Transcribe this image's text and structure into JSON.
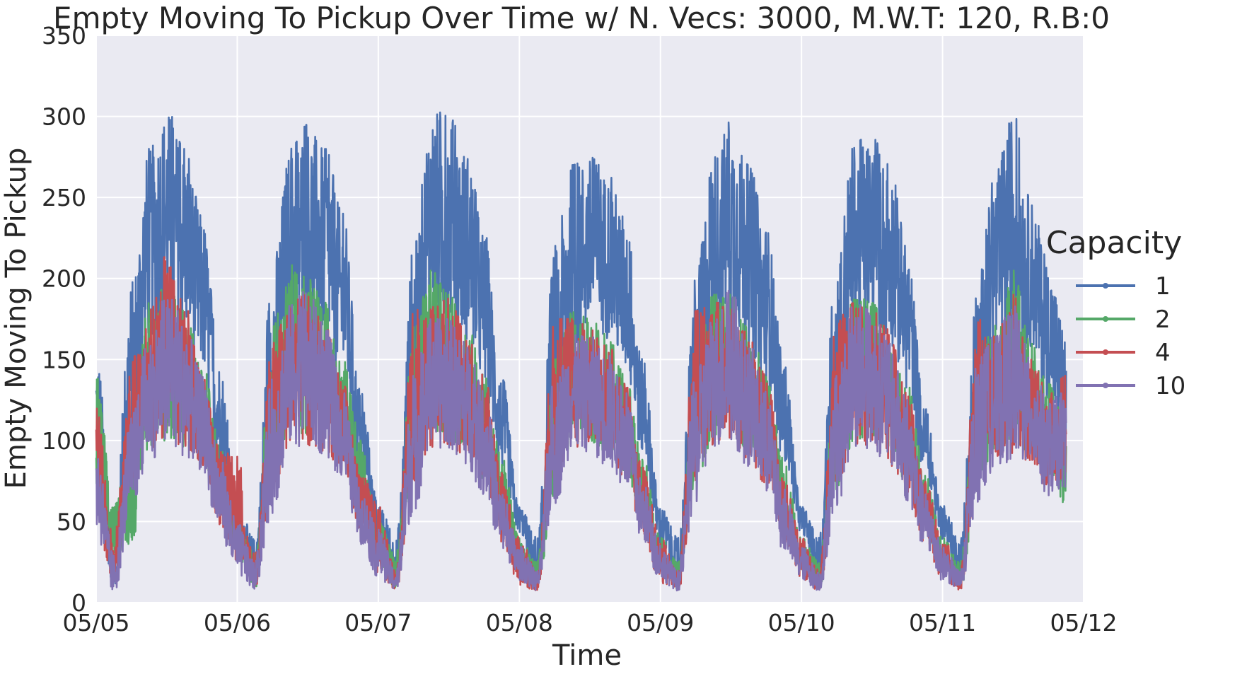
{
  "chart_data": {
    "type": "line",
    "title": "Empty Moving To Pickup Over Time w/ N. Vecs: 3000, M.W.T: 120, R.B:0",
    "xlabel": "Time",
    "ylabel": "Empty Moving To Pickup",
    "x_unit": "date (May), tick every day",
    "xlim": [
      "05/05",
      "05/12"
    ],
    "x_ticks": [
      "05/05",
      "05/06",
      "05/07",
      "05/08",
      "05/09",
      "05/10",
      "05/11",
      "05/12"
    ],
    "ylim": [
      0,
      350
    ],
    "y_ticks": [
      "0",
      "50",
      "100",
      "150",
      "200",
      "250",
      "300",
      "350"
    ],
    "grid": true,
    "legend": {
      "title": "Capacity",
      "placement": "right, outside plot"
    },
    "series": [
      {
        "name": "1",
        "color": "#4C72B0",
        "x": [
          "05/05 00:00",
          "05/05 03:00",
          "05/05 06:00",
          "05/05 09:00",
          "05/05 12:00",
          "05/05 15:00",
          "05/05 18:00",
          "05/05 21:00",
          "05/06 00:00",
          "05/06 03:00",
          "05/06 06:00",
          "05/06 09:00",
          "05/06 12:00",
          "05/06 15:00",
          "05/06 18:00",
          "05/06 21:00",
          "05/07 00:00",
          "05/07 03:00",
          "05/07 06:00",
          "05/07 09:00",
          "05/07 12:00",
          "05/07 15:00",
          "05/07 18:00",
          "05/07 21:00",
          "05/08 00:00",
          "05/08 03:00",
          "05/08 06:00",
          "05/08 09:00",
          "05/08 12:00",
          "05/08 15:00",
          "05/08 18:00",
          "05/08 21:00",
          "05/09 00:00",
          "05/09 03:00",
          "05/09 06:00",
          "05/09 09:00",
          "05/09 12:00",
          "05/09 15:00",
          "05/09 18:00",
          "05/09 21:00",
          "05/10 00:00",
          "05/10 03:00",
          "05/10 06:00",
          "05/10 09:00",
          "05/10 12:00",
          "05/10 15:00",
          "05/10 18:00",
          "05/10 21:00",
          "05/11 00:00",
          "05/11 03:00",
          "05/11 06:00",
          "05/11 09:00",
          "05/11 12:00",
          "05/11 15:00",
          "05/11 18:00",
          "05/11 21:00"
        ],
        "lower": [
          60,
          5,
          60,
          140,
          150,
          145,
          125,
          70,
          30,
          5,
          70,
          140,
          150,
          140,
          120,
          70,
          30,
          5,
          60,
          145,
          150,
          140,
          115,
          70,
          40,
          10,
          60,
          130,
          145,
          145,
          125,
          80,
          30,
          5,
          60,
          140,
          150,
          135,
          120,
          75,
          40,
          10,
          60,
          140,
          150,
          140,
          115,
          70,
          35,
          10,
          60,
          130,
          140,
          140,
          110,
          65
        ],
        "upper": [
          160,
          40,
          200,
          280,
          305,
          280,
          240,
          150,
          60,
          40,
          210,
          280,
          295,
          280,
          240,
          130,
          60,
          40,
          220,
          305,
          300,
          280,
          230,
          140,
          60,
          40,
          220,
          270,
          275,
          265,
          240,
          150,
          60,
          40,
          200,
          280,
          297,
          270,
          235,
          150,
          60,
          40,
          220,
          285,
          287,
          270,
          220,
          120,
          60,
          40,
          200,
          265,
          303,
          250,
          210,
          170
        ]
      },
      {
        "name": "2",
        "color": "#55A868",
        "x": [
          "05/05 00:00",
          "05/05 03:00",
          "05/05 06:00",
          "05/05 09:00",
          "05/05 12:00",
          "05/05 15:00",
          "05/05 18:00",
          "05/05 21:00",
          "05/06 00:00",
          "05/06 03:00",
          "05/06 06:00",
          "05/06 09:00",
          "05/06 12:00",
          "05/06 15:00",
          "05/06 18:00",
          "05/06 21:00",
          "05/07 00:00",
          "05/07 03:00",
          "05/07 06:00",
          "05/07 09:00",
          "05/07 12:00",
          "05/07 15:00",
          "05/07 18:00",
          "05/07 21:00",
          "05/08 00:00",
          "05/08 03:00",
          "05/08 06:00",
          "05/08 09:00",
          "05/08 12:00",
          "05/08 15:00",
          "05/08 18:00",
          "05/08 21:00",
          "05/09 00:00",
          "05/09 03:00",
          "05/09 06:00",
          "05/09 09:00",
          "05/09 12:00",
          "05/09 15:00",
          "05/09 18:00",
          "05/09 21:00",
          "05/10 00:00",
          "05/10 03:00",
          "05/10 06:00",
          "05/10 09:00",
          "05/10 12:00",
          "05/10 15:00",
          "05/10 18:00",
          "05/10 21:00",
          "05/11 00:00",
          "05/11 03:00",
          "05/11 06:00",
          "05/11 09:00",
          "05/11 12:00",
          "05/11 15:00",
          "05/11 18:00",
          "05/11 21:00"
        ],
        "lower": [
          40,
          20,
          25,
          80,
          80,
          80,
          75,
          50,
          25,
          5,
          60,
          85,
          85,
          85,
          75,
          45,
          20,
          5,
          60,
          85,
          85,
          80,
          65,
          40,
          15,
          5,
          50,
          85,
          85,
          80,
          70,
          45,
          15,
          5,
          60,
          85,
          85,
          80,
          70,
          40,
          15,
          5,
          55,
          85,
          85,
          80,
          60,
          40,
          15,
          5,
          55,
          80,
          80,
          80,
          70,
          50
        ],
        "upper": [
          140,
          60,
          100,
          185,
          195,
          180,
          150,
          100,
          50,
          30,
          170,
          210,
          200,
          185,
          150,
          100,
          50,
          30,
          170,
          205,
          190,
          175,
          140,
          90,
          40,
          25,
          150,
          180,
          175,
          165,
          140,
          90,
          40,
          25,
          150,
          190,
          190,
          175,
          140,
          90,
          40,
          25,
          150,
          190,
          185,
          165,
          135,
          80,
          40,
          25,
          150,
          175,
          205,
          160,
          135,
          120
        ]
      },
      {
        "name": "4",
        "color": "#C44E52",
        "x": [
          "05/05 00:00",
          "05/05 03:00",
          "05/05 06:00",
          "05/05 09:00",
          "05/05 12:00",
          "05/05 15:00",
          "05/05 18:00",
          "05/05 21:00",
          "05/06 00:00",
          "05/06 03:00",
          "05/06 06:00",
          "05/06 09:00",
          "05/06 12:00",
          "05/06 15:00",
          "05/06 18:00",
          "05/06 21:00",
          "05/07 00:00",
          "05/07 03:00",
          "05/07 06:00",
          "05/07 09:00",
          "05/07 12:00",
          "05/07 15:00",
          "05/07 18:00",
          "05/07 21:00",
          "05/08 00:00",
          "05/08 03:00",
          "05/08 06:00",
          "05/08 09:00",
          "05/08 12:00",
          "05/08 15:00",
          "05/08 18:00",
          "05/08 21:00",
          "05/09 00:00",
          "05/09 03:00",
          "05/09 06:00",
          "05/09 09:00",
          "05/09 12:00",
          "05/09 15:00",
          "05/09 18:00",
          "05/09 21:00",
          "05/10 00:00",
          "05/10 03:00",
          "05/10 06:00",
          "05/10 09:00",
          "05/10 12:00",
          "05/10 15:00",
          "05/10 18:00",
          "05/10 21:00",
          "05/11 00:00",
          "05/11 03:00",
          "05/11 06:00",
          "05/11 09:00",
          "05/11 12:00",
          "05/11 15:00",
          "05/11 18:00",
          "05/11 21:00"
        ],
        "lower": [
          35,
          5,
          60,
          80,
          80,
          80,
          75,
          40,
          10,
          5,
          55,
          80,
          80,
          80,
          70,
          35,
          10,
          5,
          55,
          80,
          80,
          75,
          60,
          30,
          5,
          5,
          60,
          80,
          80,
          75,
          65,
          35,
          5,
          5,
          55,
          80,
          80,
          75,
          60,
          30,
          10,
          5,
          55,
          80,
          80,
          70,
          55,
          30,
          10,
          5,
          60,
          75,
          75,
          75,
          60,
          65
        ],
        "upper": [
          120,
          40,
          150,
          180,
          215,
          185,
          140,
          95,
          90,
          30,
          160,
          185,
          190,
          170,
          135,
          80,
          60,
          20,
          180,
          185,
          190,
          165,
          140,
          80,
          40,
          20,
          175,
          175,
          170,
          160,
          135,
          85,
          40,
          20,
          180,
          185,
          185,
          165,
          140,
          75,
          40,
          20,
          175,
          185,
          180,
          170,
          130,
          75,
          40,
          20,
          175,
          165,
          190,
          150,
          130,
          140
        ]
      },
      {
        "name": "10",
        "color": "#8172B2",
        "x": [
          "05/05 00:00",
          "05/05 03:00",
          "05/05 06:00",
          "05/05 09:00",
          "05/05 12:00",
          "05/05 15:00",
          "05/05 18:00",
          "05/05 21:00",
          "05/06 00:00",
          "05/06 03:00",
          "05/06 06:00",
          "05/06 09:00",
          "05/06 12:00",
          "05/06 15:00",
          "05/06 18:00",
          "05/06 21:00",
          "05/07 00:00",
          "05/07 03:00",
          "05/07 06:00",
          "05/07 09:00",
          "05/07 12:00",
          "05/07 15:00",
          "05/07 18:00",
          "05/07 21:00",
          "05/08 00:00",
          "05/08 03:00",
          "05/08 06:00",
          "05/08 09:00",
          "05/08 12:00",
          "05/08 15:00",
          "05/08 18:00",
          "05/08 21:00",
          "05/09 00:00",
          "05/09 03:00",
          "05/09 06:00",
          "05/09 09:00",
          "05/09 12:00",
          "05/09 15:00",
          "05/09 18:00",
          "05/09 21:00",
          "05/10 00:00",
          "05/10 03:00",
          "05/10 06:00",
          "05/10 09:00",
          "05/10 12:00",
          "05/10 15:00",
          "05/10 18:00",
          "05/10 21:00",
          "05/11 00:00",
          "05/11 03:00",
          "05/11 06:00",
          "05/11 09:00",
          "05/11 12:00",
          "05/11 15:00",
          "05/11 18:00",
          "05/11 21:00"
        ],
        "lower": [
          30,
          0,
          45,
          75,
          75,
          75,
          70,
          35,
          10,
          5,
          40,
          80,
          80,
          75,
          65,
          30,
          10,
          5,
          40,
          80,
          80,
          70,
          55,
          25,
          10,
          5,
          45,
          80,
          80,
          70,
          60,
          30,
          10,
          5,
          45,
          80,
          80,
          70,
          55,
          25,
          10,
          5,
          45,
          80,
          80,
          70,
          50,
          25,
          10,
          5,
          45,
          70,
          70,
          70,
          55,
          60
        ],
        "upper": [
          100,
          30,
          115,
          165,
          190,
          175,
          140,
          90,
          50,
          25,
          140,
          185,
          193,
          170,
          130,
          70,
          45,
          20,
          140,
          175,
          175,
          160,
          130,
          70,
          35,
          20,
          140,
          165,
          165,
          155,
          130,
          75,
          35,
          20,
          140,
          180,
          193,
          160,
          130,
          70,
          35,
          20,
          140,
          185,
          180,
          160,
          125,
          70,
          35,
          20,
          150,
          165,
          185,
          150,
          125,
          130
        ]
      }
    ]
  }
}
